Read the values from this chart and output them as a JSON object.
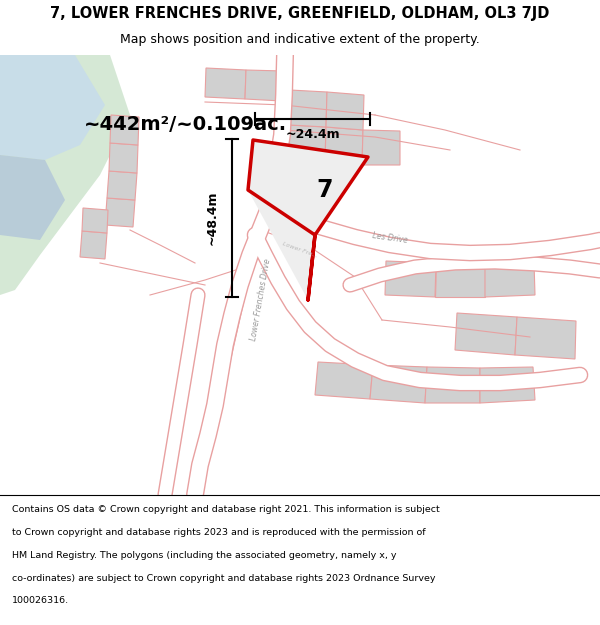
{
  "title_line1": "7, LOWER FRENCHES DRIVE, GREENFIELD, OLDHAM, OL3 7JD",
  "title_line2": "Map shows position and indicative extent of the property.",
  "area_text": "~442m²/~0.109ac.",
  "label_7": "7",
  "dim_vertical": "~48.4m",
  "dim_horizontal": "~24.4m",
  "footer_lines": [
    "Contains OS data © Crown copyright and database right 2021. This information is subject",
    "to Crown copyright and database rights 2023 and is reproduced with the permission of",
    "HM Land Registry. The polygons (including the associated geometry, namely x, y",
    "co-ordinates) are subject to Crown copyright and database rights 2023 Ordnance Survey",
    "100026316."
  ],
  "bg_map_color": "#f0f0f0",
  "water_color": "#c8dde8",
  "green_color": "#d5e8d5",
  "road_fill": "#ffffff",
  "plot_outline_color": "#cc0000",
  "building_fill": "#d0d0d0",
  "boundary_color": "#e8a0a0",
  "road_label_lower_frenches": "Lower Frenches Drive",
  "road_label_upper": "Les Drive"
}
